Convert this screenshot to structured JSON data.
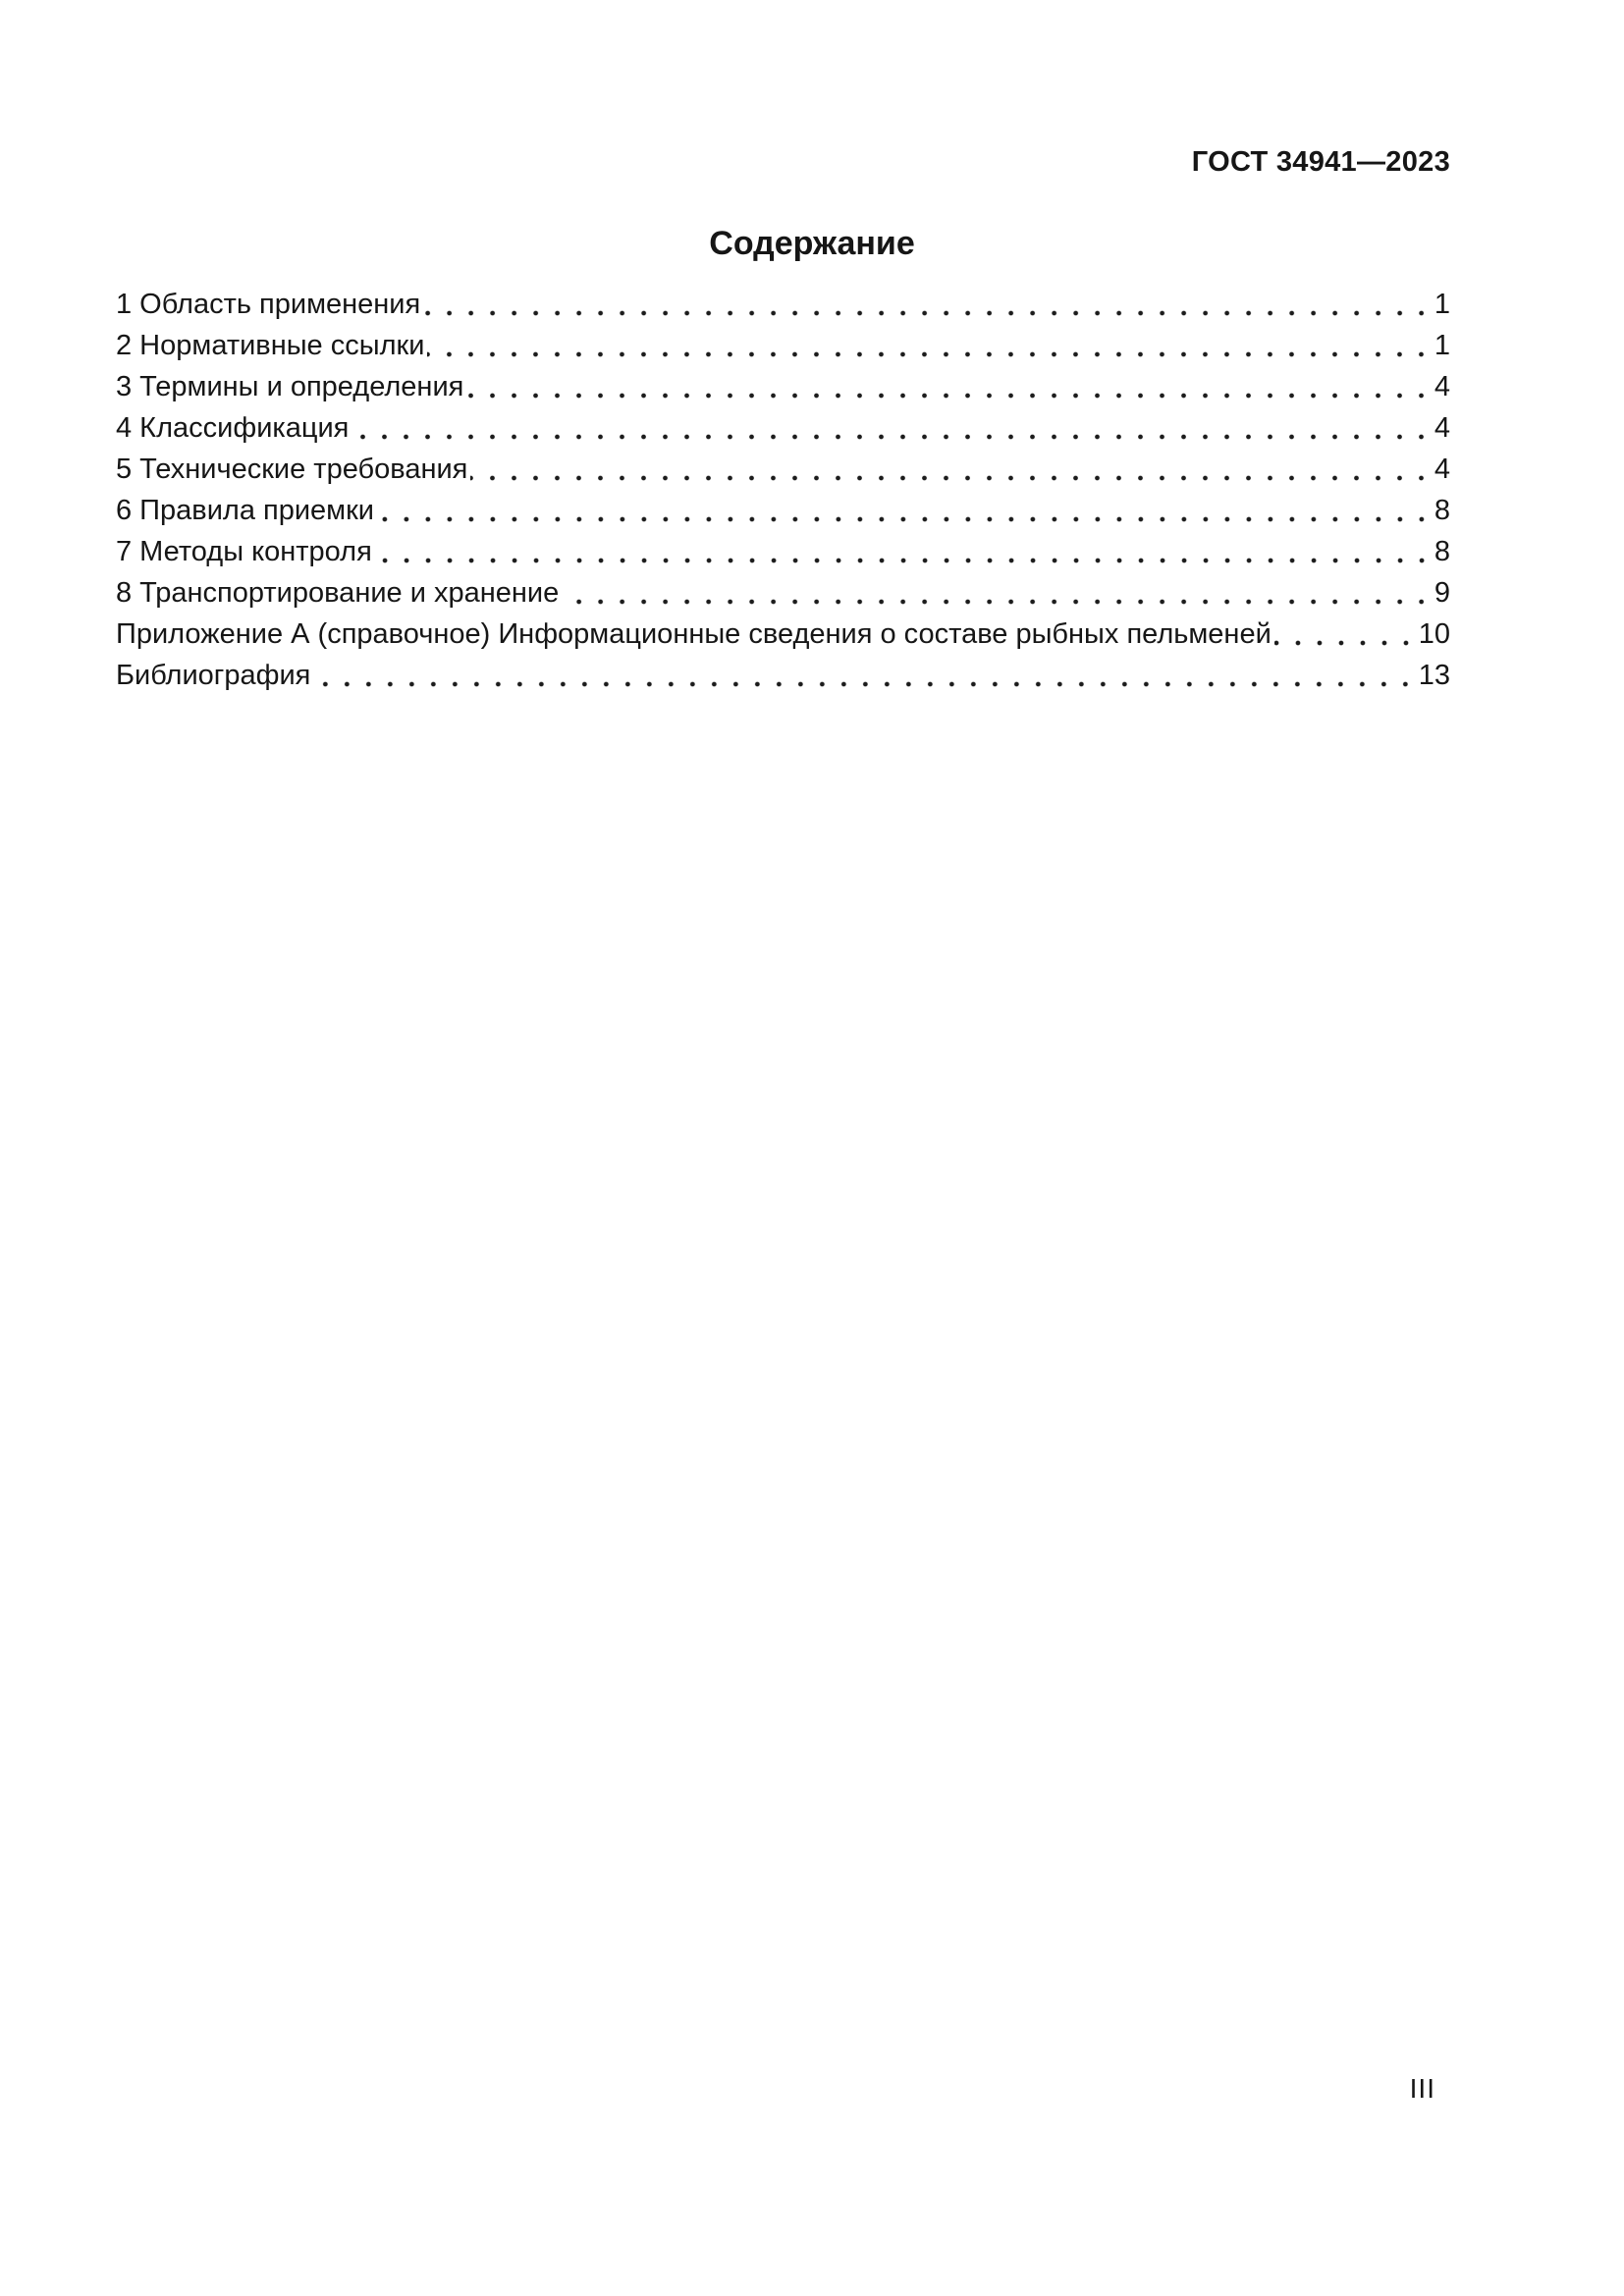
{
  "page": {
    "header": "ГОСТ 34941—2023",
    "title": "Содержание",
    "footer_page_number": "III"
  },
  "toc": {
    "items": [
      {
        "title": "1 Область применения",
        "page": "1"
      },
      {
        "title": "2 Нормативные ссылки",
        "page": "1"
      },
      {
        "title": "3 Термины и определения",
        "page": "4"
      },
      {
        "title": "4 Классификация",
        "page": "4"
      },
      {
        "title": "5 Технические требования",
        "page": "4"
      },
      {
        "title": "6 Правила приемки",
        "page": "8"
      },
      {
        "title": "7 Методы контроля",
        "page": "8"
      },
      {
        "title": "8 Транспортирование и хранение",
        "page": "9"
      },
      {
        "title": "Приложение А (справочное) Информационные сведения о составе рыбных пельменей",
        "page": "10"
      },
      {
        "title": "Библиография",
        "page": "13"
      }
    ]
  }
}
